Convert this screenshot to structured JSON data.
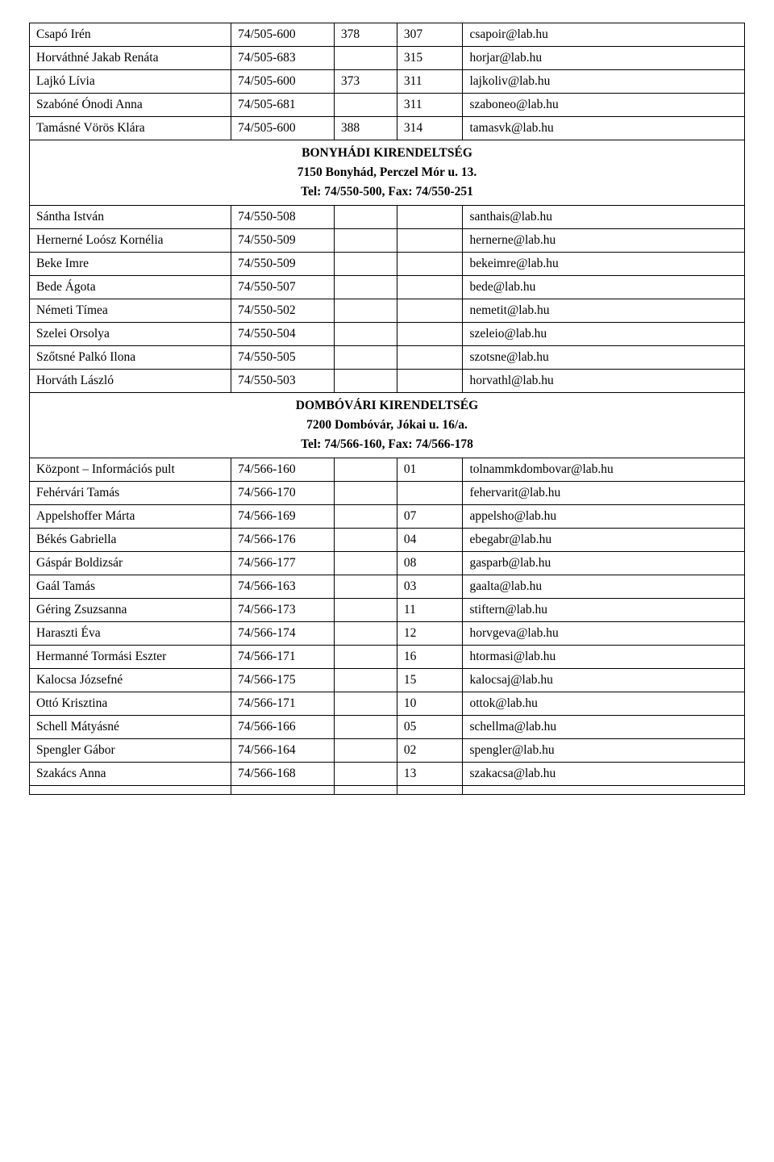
{
  "block1": {
    "rows": [
      {
        "name": "Csapó Irén",
        "phone": "74/505-600",
        "c3": "378",
        "c4": "307",
        "email": "csapoir@lab.hu"
      },
      {
        "name": "Horváthné Jakab Renáta",
        "phone": "74/505-683",
        "c3": "",
        "c4": "315",
        "email": "horjar@lab.hu"
      },
      {
        "name": "Lajkó Lívia",
        "phone": "74/505-600",
        "c3": "373",
        "c4": "311",
        "email": "lajkoliv@lab.hu"
      },
      {
        "name": "Szabóné Ónodi Anna",
        "phone": "74/505-681",
        "c3": "",
        "c4": "311",
        "email": "szaboneo@lab.hu"
      },
      {
        "name": "Tamásné Vörös Klára",
        "phone": "74/505-600",
        "c3": "388",
        "c4": "314",
        "email": "tamasvk@lab.hu"
      }
    ]
  },
  "section1": {
    "line1": "BONYHÁDI KIRENDELTSÉG",
    "line2": "7150 Bonyhád, Perczel Mór u. 13.",
    "line3": "Tel: 74/550-500, Fax: 74/550-251"
  },
  "block2": {
    "rows": [
      {
        "name": "Sántha István",
        "phone": "74/550-508",
        "c3": "",
        "c4": "",
        "email": "santhais@lab.hu"
      },
      {
        "name": "Hernerné Loósz Kornélia",
        "phone": "74/550-509",
        "c3": "",
        "c4": "",
        "email": "hernerne@lab.hu"
      },
      {
        "name": "Beke Imre",
        "phone": "74/550-509",
        "c3": "",
        "c4": "",
        "email": "bekeimre@lab.hu"
      },
      {
        "name": "Bede Ágota",
        "phone": "74/550-507",
        "c3": "",
        "c4": "",
        "email": "bede@lab.hu"
      },
      {
        "name": "Németi Tímea",
        "phone": "74/550-502",
        "c3": "",
        "c4": "",
        "email": "nemetit@lab.hu"
      },
      {
        "name": "Szelei Orsolya",
        "phone": "74/550-504",
        "c3": "",
        "c4": "",
        "email": "szeleio@lab.hu"
      },
      {
        "name": "Szőtsné Palkó Ilona",
        "phone": "74/550-505",
        "c3": "",
        "c4": "",
        "email": "szotsne@lab.hu"
      },
      {
        "name": "Horváth László",
        "phone": "74/550-503",
        "c3": "",
        "c4": "",
        "email": "horvathl@lab.hu"
      }
    ]
  },
  "section2": {
    "line1": "DOMBÓVÁRI KIRENDELTSÉG",
    "line2": "7200 Dombóvár, Jókai u. 16/a.",
    "line3": "Tel: 74/566-160, Fax: 74/566-178"
  },
  "block3": {
    "rows": [
      {
        "name": "Központ – Információs pult",
        "phone": "74/566-160",
        "c3": "",
        "c4": "01",
        "email": "tolnammkdombovar@lab.hu"
      },
      {
        "name": "Fehérvári Tamás",
        "phone": "74/566-170",
        "c3": "",
        "c4": "",
        "email": "fehervarit@lab.hu"
      },
      {
        "name": "Appelshoffer Márta",
        "phone": "74/566-169",
        "c3": "",
        "c4": "07",
        "email": "appelsho@lab.hu"
      },
      {
        "name": "Békés Gabriella",
        "phone": "74/566-176",
        "c3": "",
        "c4": "04",
        "email": "ebegabr@lab.hu"
      },
      {
        "name": "Gáspár Boldizsár",
        "phone": "74/566-177",
        "c3": "",
        "c4": "08",
        "email": "gasparb@lab.hu"
      },
      {
        "name": "Gaál Tamás",
        "phone": "74/566-163",
        "c3": "",
        "c4": "03",
        "email": "gaalta@lab.hu"
      },
      {
        "name": "Géring Zsuzsanna",
        "phone": "74/566-173",
        "c3": "",
        "c4": "11",
        "email": "stiftern@lab.hu"
      },
      {
        "name": "Haraszti Éva",
        "phone": "74/566-174",
        "c3": "",
        "c4": "12",
        "email": "horvgeva@lab.hu"
      },
      {
        "name": "Hermanné Tormási Eszter",
        "phone": "74/566-171",
        "c3": "",
        "c4": "16",
        "email": "htormasi@lab.hu"
      },
      {
        "name": "Kalocsa Józsefné",
        "phone": "74/566-175",
        "c3": "",
        "c4": "15",
        "email": "kalocsaj@lab.hu"
      },
      {
        "name": "Ottó Krisztina",
        "phone": "74/566-171",
        "c3": "",
        "c4": "10",
        "email": "ottok@lab.hu"
      },
      {
        "name": "Schell Mátyásné",
        "phone": "74/566-166",
        "c3": "",
        "c4": "05",
        "email": "schellma@lab.hu"
      },
      {
        "name": "Spengler Gábor",
        "phone": "74/566-164",
        "c3": "",
        "c4": "02",
        "email": "spengler@lab.hu"
      },
      {
        "name": "Szakács Anna",
        "phone": "74/566-168",
        "c3": "",
        "c4": "13",
        "email": "szakacsa@lab.hu"
      },
      {
        "name": "",
        "phone": "",
        "c3": "",
        "c4": "",
        "email": ""
      }
    ]
  }
}
